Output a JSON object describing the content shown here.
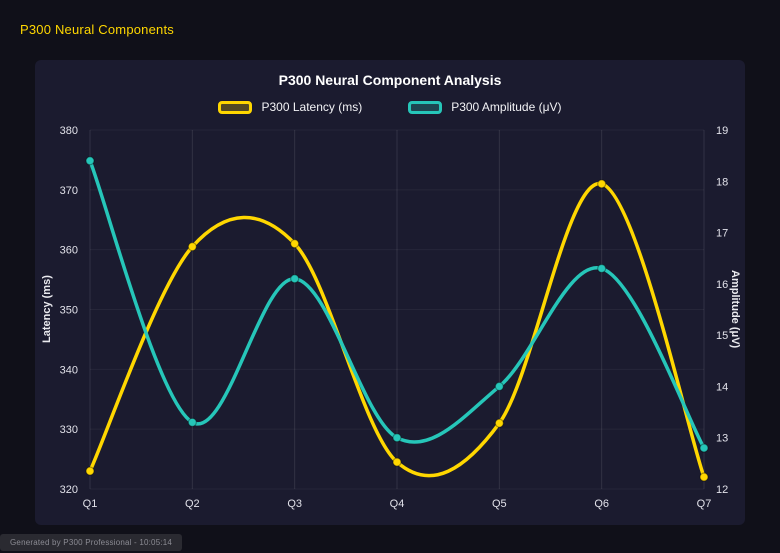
{
  "page": {
    "header": "P300 Neural Components",
    "footer": "Generated by P300 Professional - 10:05:14"
  },
  "colors": {
    "background": "#101019",
    "panel": "#1b1b2f",
    "accent_yellow": "#ffd700",
    "accent_teal": "#26c6b9",
    "title_text": "#ffffff",
    "tick_text": "#e2e2ea"
  },
  "chart_data": {
    "type": "line",
    "title": "P300 Neural Component Analysis",
    "categories": [
      "Q1",
      "Q2",
      "Q3",
      "Q4",
      "Q5",
      "Q6",
      "Q7"
    ],
    "series": [
      {
        "name": "P300 Latency (ms)",
        "axis": "left",
        "color": "#ffd700",
        "values": [
          323,
          360.5,
          361,
          324.5,
          331,
          371,
          322
        ]
      },
      {
        "name": "P300 Amplitude (μV)",
        "axis": "right",
        "color": "#26c6b9",
        "values": [
          18.4,
          13.3,
          16.1,
          13.0,
          14.0,
          16.3,
          12.8
        ]
      }
    ],
    "left_axis": {
      "label": "Latency (ms)",
      "min": 320,
      "max": 380,
      "step": 10
    },
    "right_axis": {
      "label": "Amplitude (μV)",
      "min": 12,
      "max": 19,
      "step": 1
    },
    "grid": "vertical-faint-horizontal",
    "legend_position": "top",
    "line_style": "smooth-spline-with-point-markers"
  }
}
